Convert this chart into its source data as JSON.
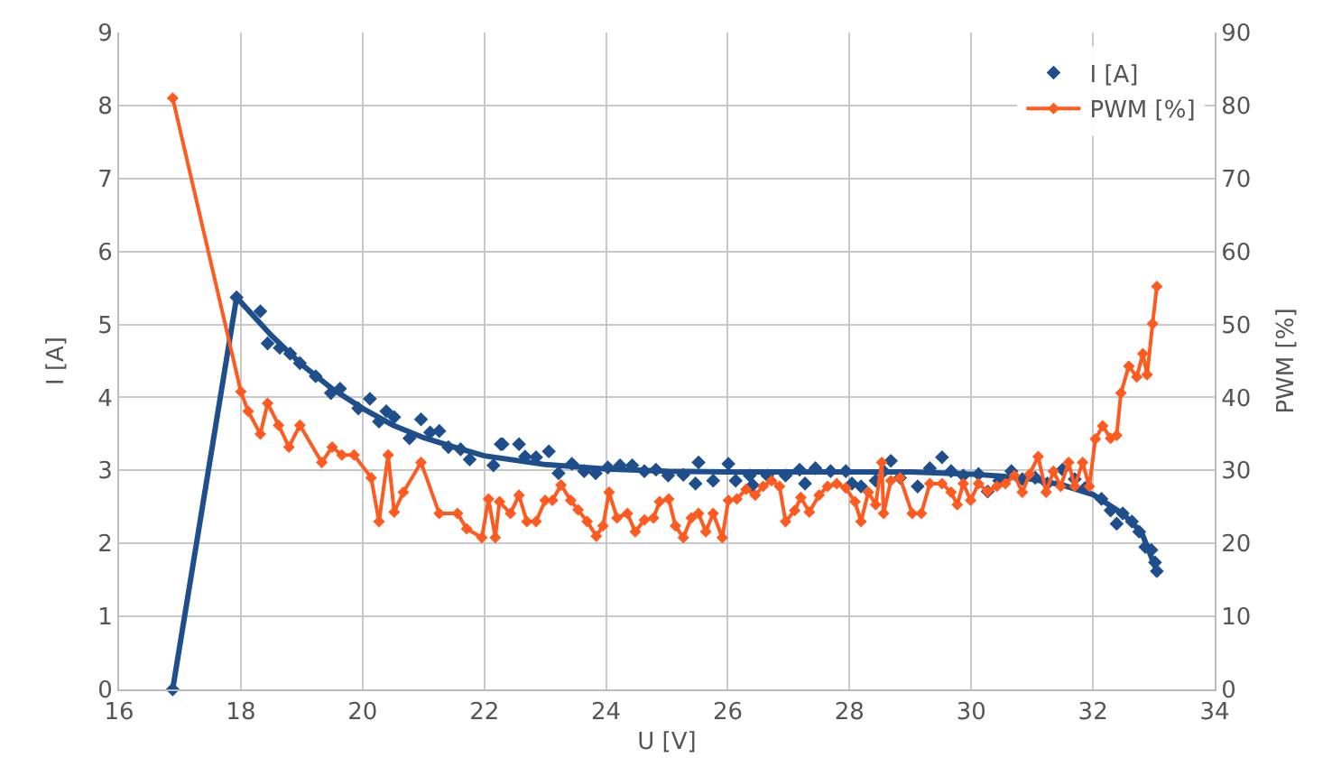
{
  "chart_data": {
    "type": "scatter",
    "xlabel": "U [V]",
    "ylabel": "I [A]",
    "y2label": "PWM [%]",
    "xlim": [
      16,
      34
    ],
    "xticks": [
      16,
      18,
      20,
      22,
      24,
      26,
      28,
      30,
      32,
      34
    ],
    "ylim": [
      0,
      9
    ],
    "yticks": [
      0,
      1,
      2,
      3,
      4,
      5,
      6,
      7,
      8,
      9
    ],
    "y2lim": [
      0,
      90
    ],
    "y2ticks": [
      0,
      10,
      20,
      30,
      40,
      50,
      60,
      70,
      80,
      90
    ],
    "grid": true,
    "legend": "top right",
    "series": [
      {
        "type": "line",
        "color": "#1f4e8c",
        "marker": "none",
        "x": [
          16.88,
          17.93,
          18.5,
          19,
          19.5,
          20,
          20.5,
          21,
          21.5,
          22,
          23,
          24,
          25,
          26,
          27,
          28,
          29,
          30,
          30.5,
          31,
          31.5,
          32,
          32.5,
          32.8,
          33.05
        ],
        "values": [
          0,
          5.37,
          4.85,
          4.45,
          4.12,
          3.85,
          3.62,
          3.45,
          3.32,
          3.2,
          3.08,
          3.02,
          2.99,
          2.98,
          2.98,
          2.98,
          2.98,
          2.95,
          2.92,
          2.88,
          2.8,
          2.67,
          2.4,
          2.15,
          1.62
        ]
      },
      {
        "name": "I [A]",
        "color": "#1f4e8c",
        "marker": "diamond",
        "x": [
          16.88,
          17.93,
          18.32,
          18.44,
          18.64,
          18.81,
          18.97,
          19.23,
          19.48,
          19.63,
          19.93,
          20.12,
          20.27,
          20.39,
          20.52,
          20.77,
          20.96,
          21.11,
          21.26,
          21.41,
          21.61,
          21.76,
          22.15,
          22.27,
          22.3,
          22.57,
          22.67,
          22.85,
          23.06,
          23.22,
          23.44,
          23.64,
          23.83,
          24.03,
          24.23,
          24.43,
          24.63,
          24.82,
          25.02,
          25.27,
          25.47,
          25.52,
          25.76,
          26.01,
          26.13,
          26.36,
          26.41,
          26.65,
          26.95,
          27.18,
          27.27,
          27.44,
          27.69,
          27.94,
          28.04,
          28.19,
          28.43,
          28.56,
          28.68,
          28.83,
          29.12,
          29.32,
          29.52,
          29.67,
          29.87,
          30.12,
          30.27,
          30.46,
          30.66,
          30.84,
          31.05,
          31.25,
          31.5,
          31.7,
          31.87,
          32.14,
          32.29,
          32.39,
          32.49,
          32.64,
          32.76,
          32.86,
          32.96,
          33.02,
          33.05
        ],
        "values": [
          0,
          5.37,
          5.18,
          4.74,
          4.68,
          4.6,
          4.47,
          4.29,
          4.06,
          4.12,
          3.85,
          3.98,
          3.67,
          3.81,
          3.73,
          3.44,
          3.7,
          3.52,
          3.54,
          3.32,
          3.29,
          3.15,
          3.07,
          3.36,
          3.36,
          3.36,
          3.19,
          3.18,
          3.26,
          2.96,
          3.09,
          2.99,
          2.96,
          3.04,
          3.07,
          3.07,
          2.99,
          3.01,
          2.93,
          2.94,
          2.82,
          3.11,
          2.86,
          3.09,
          2.86,
          2.93,
          2.8,
          2.93,
          2.93,
          3.01,
          2.82,
          3.03,
          2.99,
          2.99,
          2.82,
          2.78,
          2.86,
          2.99,
          3.13,
          2.9,
          2.78,
          3.03,
          3.18,
          2.99,
          2.93,
          2.95,
          2.71,
          2.86,
          2.99,
          2.88,
          2.9,
          2.82,
          3.01,
          2.88,
          2.76,
          2.61,
          2.45,
          2.27,
          2.41,
          2.3,
          2.16,
          1.95,
          1.91,
          1.74,
          1.62
        ]
      },
      {
        "name": "PWM [%]",
        "type": "line",
        "axis": "y2",
        "color": "#ff5a1f",
        "marker": "diamond",
        "x": [
          16.88,
          18.0,
          18.12,
          18.32,
          18.44,
          18.62,
          18.79,
          18.97,
          19.33,
          19.5,
          19.66,
          19.86,
          20.14,
          20.27,
          20.42,
          20.52,
          20.67,
          20.96,
          21.26,
          21.56,
          21.71,
          21.96,
          22.07,
          22.18,
          22.25,
          22.43,
          22.57,
          22.7,
          22.85,
          23.0,
          23.12,
          23.26,
          23.42,
          23.54,
          23.69,
          23.84,
          23.95,
          24.05,
          24.18,
          24.35,
          24.48,
          24.63,
          24.78,
          24.88,
          25.03,
          25.14,
          25.27,
          25.4,
          25.52,
          25.64,
          25.76,
          25.91,
          26.01,
          26.15,
          26.3,
          26.45,
          26.58,
          26.72,
          26.85,
          26.95,
          27.1,
          27.2,
          27.34,
          27.5,
          27.64,
          27.79,
          27.94,
          28.09,
          28.19,
          28.31,
          28.43,
          28.53,
          28.56,
          28.68,
          28.83,
          29.03,
          29.18,
          29.32,
          29.52,
          29.67,
          29.77,
          29.87,
          29.99,
          30.12,
          30.27,
          30.42,
          30.56,
          30.71,
          30.84,
          30.96,
          31.1,
          31.23,
          31.35,
          31.47,
          31.6,
          31.7,
          31.83,
          31.94,
          32.04,
          32.16,
          32.29,
          32.39,
          32.46,
          32.59,
          32.72,
          32.82,
          32.89,
          32.98,
          33.05
        ],
        "values": [
          81,
          40.8,
          38.1,
          35,
          39.2,
          36.2,
          33.2,
          36.2,
          31.1,
          33.2,
          32.1,
          32.1,
          29,
          23,
          32.1,
          24.3,
          27,
          31.1,
          24.1,
          24.1,
          22,
          20.8,
          26.1,
          20.8,
          25.7,
          24.1,
          26.6,
          23,
          23,
          25.9,
          25.9,
          28,
          25.9,
          24.6,
          23,
          21,
          22.4,
          27,
          23.5,
          24.1,
          21.6,
          23.2,
          23.5,
          25.7,
          26.1,
          22.4,
          20.8,
          23.5,
          24.1,
          21.6,
          24.1,
          20.8,
          25.9,
          26.1,
          27.4,
          26.6,
          27.8,
          28.6,
          27.8,
          23,
          24.5,
          26.3,
          24.3,
          26.6,
          27.8,
          28.2,
          27.6,
          25.7,
          23,
          27,
          25.3,
          31.1,
          24.1,
          28.6,
          29,
          24.1,
          24.1,
          28.2,
          28.2,
          27,
          25.3,
          28.2,
          25.9,
          28.2,
          27.1,
          27.8,
          28.2,
          29.3,
          27,
          29.5,
          31.9,
          27,
          29.9,
          27.8,
          31.1,
          27.8,
          31.1,
          27.8,
          34.3,
          36.1,
          34.4,
          34.8,
          40.6,
          44.3,
          42.8,
          46,
          43.1,
          50.1,
          55.2
        ]
      }
    ]
  }
}
